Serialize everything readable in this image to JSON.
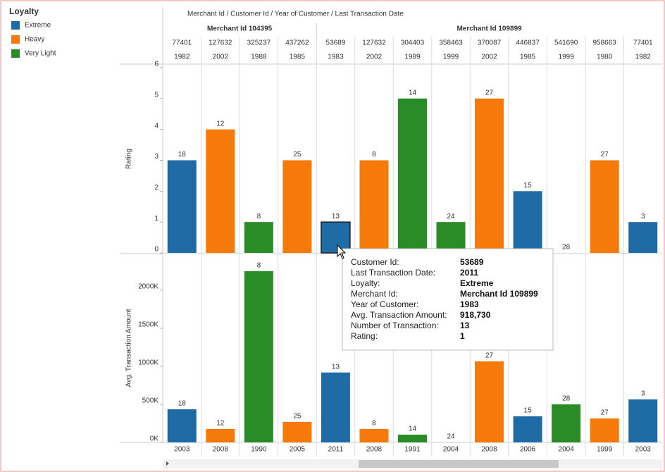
{
  "header": "Merchant Id  /  Customer Id  /  Year of Customer  /  Last Transaction Date",
  "legend": {
    "title": "Loyalty",
    "items": [
      {
        "name": "Extreme",
        "color": "#1f6ba5"
      },
      {
        "name": "Heavy",
        "color": "#f57a0a"
      },
      {
        "name": "Very Light",
        "color": "#2a8c26"
      }
    ]
  },
  "merchants": [
    "Merchant Id 104395",
    "Merchant Id 104395",
    "Merchant Id 104395",
    "Merchant Id 104395",
    "Merchant Id 109899",
    "Merchant Id 109899",
    "Merchant Id 109899",
    "Merchant Id 109899",
    "Merchant Id 109899",
    "Merchant Id 109899",
    "Merchant Id 109899",
    "Merchant Id 109899",
    "Merchant Id 109899"
  ],
  "customer_ids": [
    "77401",
    "127632",
    "325237",
    "437262",
    "53689",
    "127632",
    "304403",
    "358463",
    "370087",
    "446837",
    "541690",
    "958663",
    "77401"
  ],
  "customer_years": [
    "1982",
    "2002",
    "1988",
    "1985",
    "1983",
    "2002",
    "1989",
    "1999",
    "2002",
    "1985",
    "1999",
    "1980",
    "1982"
  ],
  "loyalty": [
    "Extreme",
    "Heavy",
    "Very Light",
    "Heavy",
    "Extreme",
    "Heavy",
    "Very Light",
    "Very Light",
    "Heavy",
    "Extreme",
    "Very Light",
    "Heavy",
    "Extreme"
  ],
  "transactions": [
    "18",
    "12",
    "8",
    "25",
    "13",
    "8",
    "14",
    "24",
    "27",
    "15",
    "28",
    "27",
    "3"
  ],
  "chart_data": [
    {
      "type": "bar",
      "y_label": "Rating",
      "ylim": [
        0,
        6
      ],
      "yticks": [
        0,
        1,
        2,
        3,
        4,
        5,
        6
      ],
      "values": [
        3,
        4,
        1,
        3,
        1,
        3,
        5,
        1,
        5,
        2,
        0,
        3,
        1
      ]
    },
    {
      "type": "bar",
      "y_label": "Avg. Transaction Amount",
      "ylim": [
        0,
        2480000
      ],
      "yticks": [
        {
          "value": 0,
          "label": "0K"
        },
        {
          "value": 500000,
          "label": "500K"
        },
        {
          "value": 1000000,
          "label": "1000K"
        },
        {
          "value": 1500000,
          "label": "1500K"
        },
        {
          "value": 2000000,
          "label": "2000K"
        }
      ],
      "categories": [
        "2003",
        "2008",
        "1990",
        "2005",
        "2011",
        "2008",
        "1991",
        "2004",
        "2008",
        "2006",
        "2004",
        "1999",
        "2003"
      ],
      "values": [
        435000,
        176000,
        2250000,
        269000,
        918730,
        176000,
        102000,
        0,
        1065000,
        343000,
        500000,
        315000,
        565000
      ]
    }
  ],
  "tooltip": {
    "rows": [
      {
        "label": "Customer Id:",
        "value": "53689"
      },
      {
        "label": "Last Transaction Date:",
        "value": "2011"
      },
      {
        "label": "Loyalty:",
        "value": "Extreme"
      },
      {
        "label": "Merchant Id:",
        "value": "Merchant Id 109899"
      },
      {
        "label": "Year of Customer:",
        "value": "1983"
      },
      {
        "label": "Avg. Transaction Amount:",
        "value": "918,730"
      },
      {
        "label": "Number of Transaction:",
        "value": "13"
      },
      {
        "label": "Rating:",
        "value": "1"
      }
    ]
  }
}
